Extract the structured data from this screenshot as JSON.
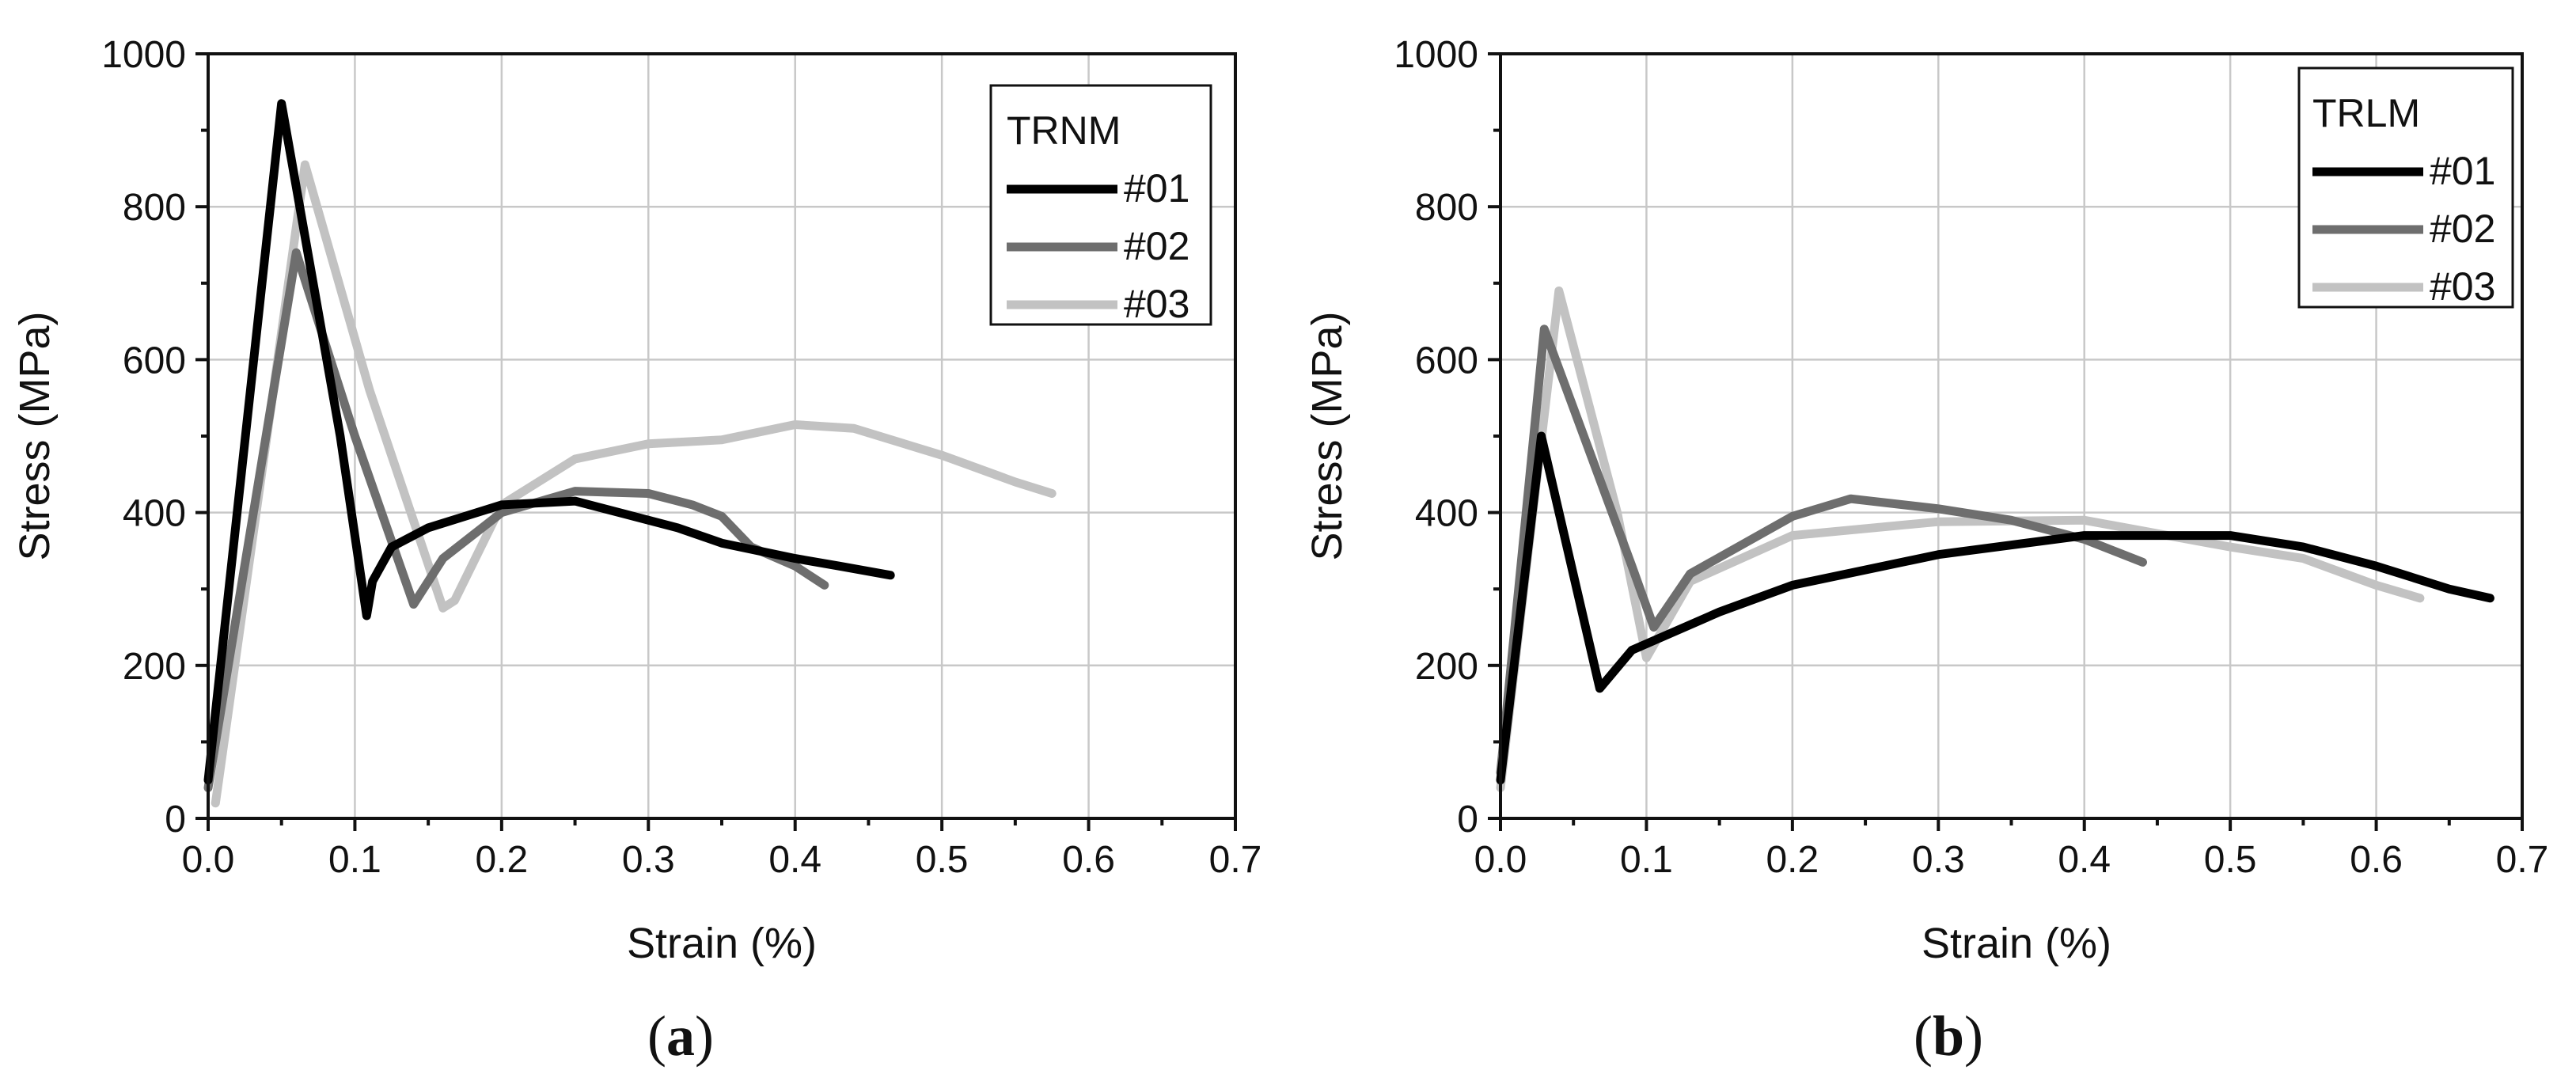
{
  "chart_data": [
    {
      "type": "line",
      "panel_label": "a",
      "title": "",
      "xlabel": "Strain (%)",
      "ylabel": "Stress (MPa)",
      "xlim": [
        0,
        0.7
      ],
      "ylim": [
        0,
        1000
      ],
      "x_ticks": [
        "0.0",
        "0.1",
        "0.2",
        "0.3",
        "0.4",
        "0.5",
        "0.6",
        "0.7"
      ],
      "y_ticks": [
        "0",
        "200",
        "400",
        "600",
        "800",
        "1000"
      ],
      "grid": true,
      "legend": {
        "title": "TRNM",
        "placement": "top-right"
      },
      "series": [
        {
          "name": "#01",
          "color": "#000000",
          "points": [
            [
              0,
              50
            ],
            [
              0.05,
              935
            ],
            [
              0.09,
              500
            ],
            [
              0.108,
              265
            ],
            [
              0.112,
              310
            ],
            [
              0.125,
              355
            ],
            [
              0.15,
              380
            ],
            [
              0.2,
              410
            ],
            [
              0.25,
              415
            ],
            [
              0.28,
              400
            ],
            [
              0.32,
              380
            ],
            [
              0.35,
              360
            ],
            [
              0.4,
              340
            ],
            [
              0.43,
              330
            ],
            [
              0.465,
              318
            ]
          ]
        },
        {
          "name": "#02",
          "color": "#6e6e6e",
          "points": [
            [
              0,
              40
            ],
            [
              0.06,
              740
            ],
            [
              0.1,
              500
            ],
            [
              0.14,
              280
            ],
            [
              0.16,
              340
            ],
            [
              0.2,
              400
            ],
            [
              0.25,
              428
            ],
            [
              0.3,
              425
            ],
            [
              0.33,
              410
            ],
            [
              0.35,
              395
            ],
            [
              0.37,
              355
            ],
            [
              0.4,
              330
            ],
            [
              0.42,
              305
            ]
          ]
        },
        {
          "name": "#03",
          "color": "#c2c2c2",
          "points": [
            [
              0.005,
              20
            ],
            [
              0.066,
              855
            ],
            [
              0.11,
              560
            ],
            [
              0.16,
              275
            ],
            [
              0.168,
              285
            ],
            [
              0.2,
              410
            ],
            [
              0.25,
              470
            ],
            [
              0.3,
              490
            ],
            [
              0.35,
              495
            ],
            [
              0.4,
              515
            ],
            [
              0.44,
              510
            ],
            [
              0.5,
              475
            ],
            [
              0.55,
              440
            ],
            [
              0.575,
              425
            ]
          ]
        }
      ]
    },
    {
      "type": "line",
      "panel_label": "b",
      "title": "",
      "xlabel": "Strain (%)",
      "ylabel": "Stress (MPa)",
      "xlim": [
        0,
        0.7
      ],
      "ylim": [
        0,
        1000
      ],
      "x_ticks": [
        "0.0",
        "0.1",
        "0.2",
        "0.3",
        "0.4",
        "0.5",
        "0.6",
        "0.7"
      ],
      "y_ticks": [
        "0",
        "200",
        "400",
        "600",
        "800",
        "1000"
      ],
      "grid": true,
      "legend": {
        "title": "TRLM",
        "placement": "top-right"
      },
      "series": [
        {
          "name": "#01",
          "color": "#000000",
          "points": [
            [
              0,
              50
            ],
            [
              0.028,
              500
            ],
            [
              0.068,
              170
            ],
            [
              0.09,
              220
            ],
            [
              0.15,
              270
            ],
            [
              0.2,
              305
            ],
            [
              0.3,
              345
            ],
            [
              0.4,
              370
            ],
            [
              0.5,
              370
            ],
            [
              0.55,
              355
            ],
            [
              0.6,
              330
            ],
            [
              0.65,
              300
            ],
            [
              0.678,
              288
            ]
          ]
        },
        {
          "name": "#02",
          "color": "#6e6e6e",
          "points": [
            [
              0,
              60
            ],
            [
              0.03,
              640
            ],
            [
              0.09,
              330
            ],
            [
              0.105,
              250
            ],
            [
              0.13,
              320
            ],
            [
              0.2,
              395
            ],
            [
              0.24,
              418
            ],
            [
              0.3,
              405
            ],
            [
              0.35,
              390
            ],
            [
              0.4,
              365
            ],
            [
              0.44,
              335
            ]
          ]
        },
        {
          "name": "#03",
          "color": "#c2c2c2",
          "points": [
            [
              0,
              40
            ],
            [
              0.04,
              690
            ],
            [
              0.08,
              400
            ],
            [
              0.1,
              210
            ],
            [
              0.13,
              310
            ],
            [
              0.2,
              370
            ],
            [
              0.3,
              388
            ],
            [
              0.4,
              390
            ],
            [
              0.5,
              355
            ],
            [
              0.55,
              340
            ],
            [
              0.6,
              305
            ],
            [
              0.63,
              288
            ]
          ]
        }
      ]
    }
  ]
}
